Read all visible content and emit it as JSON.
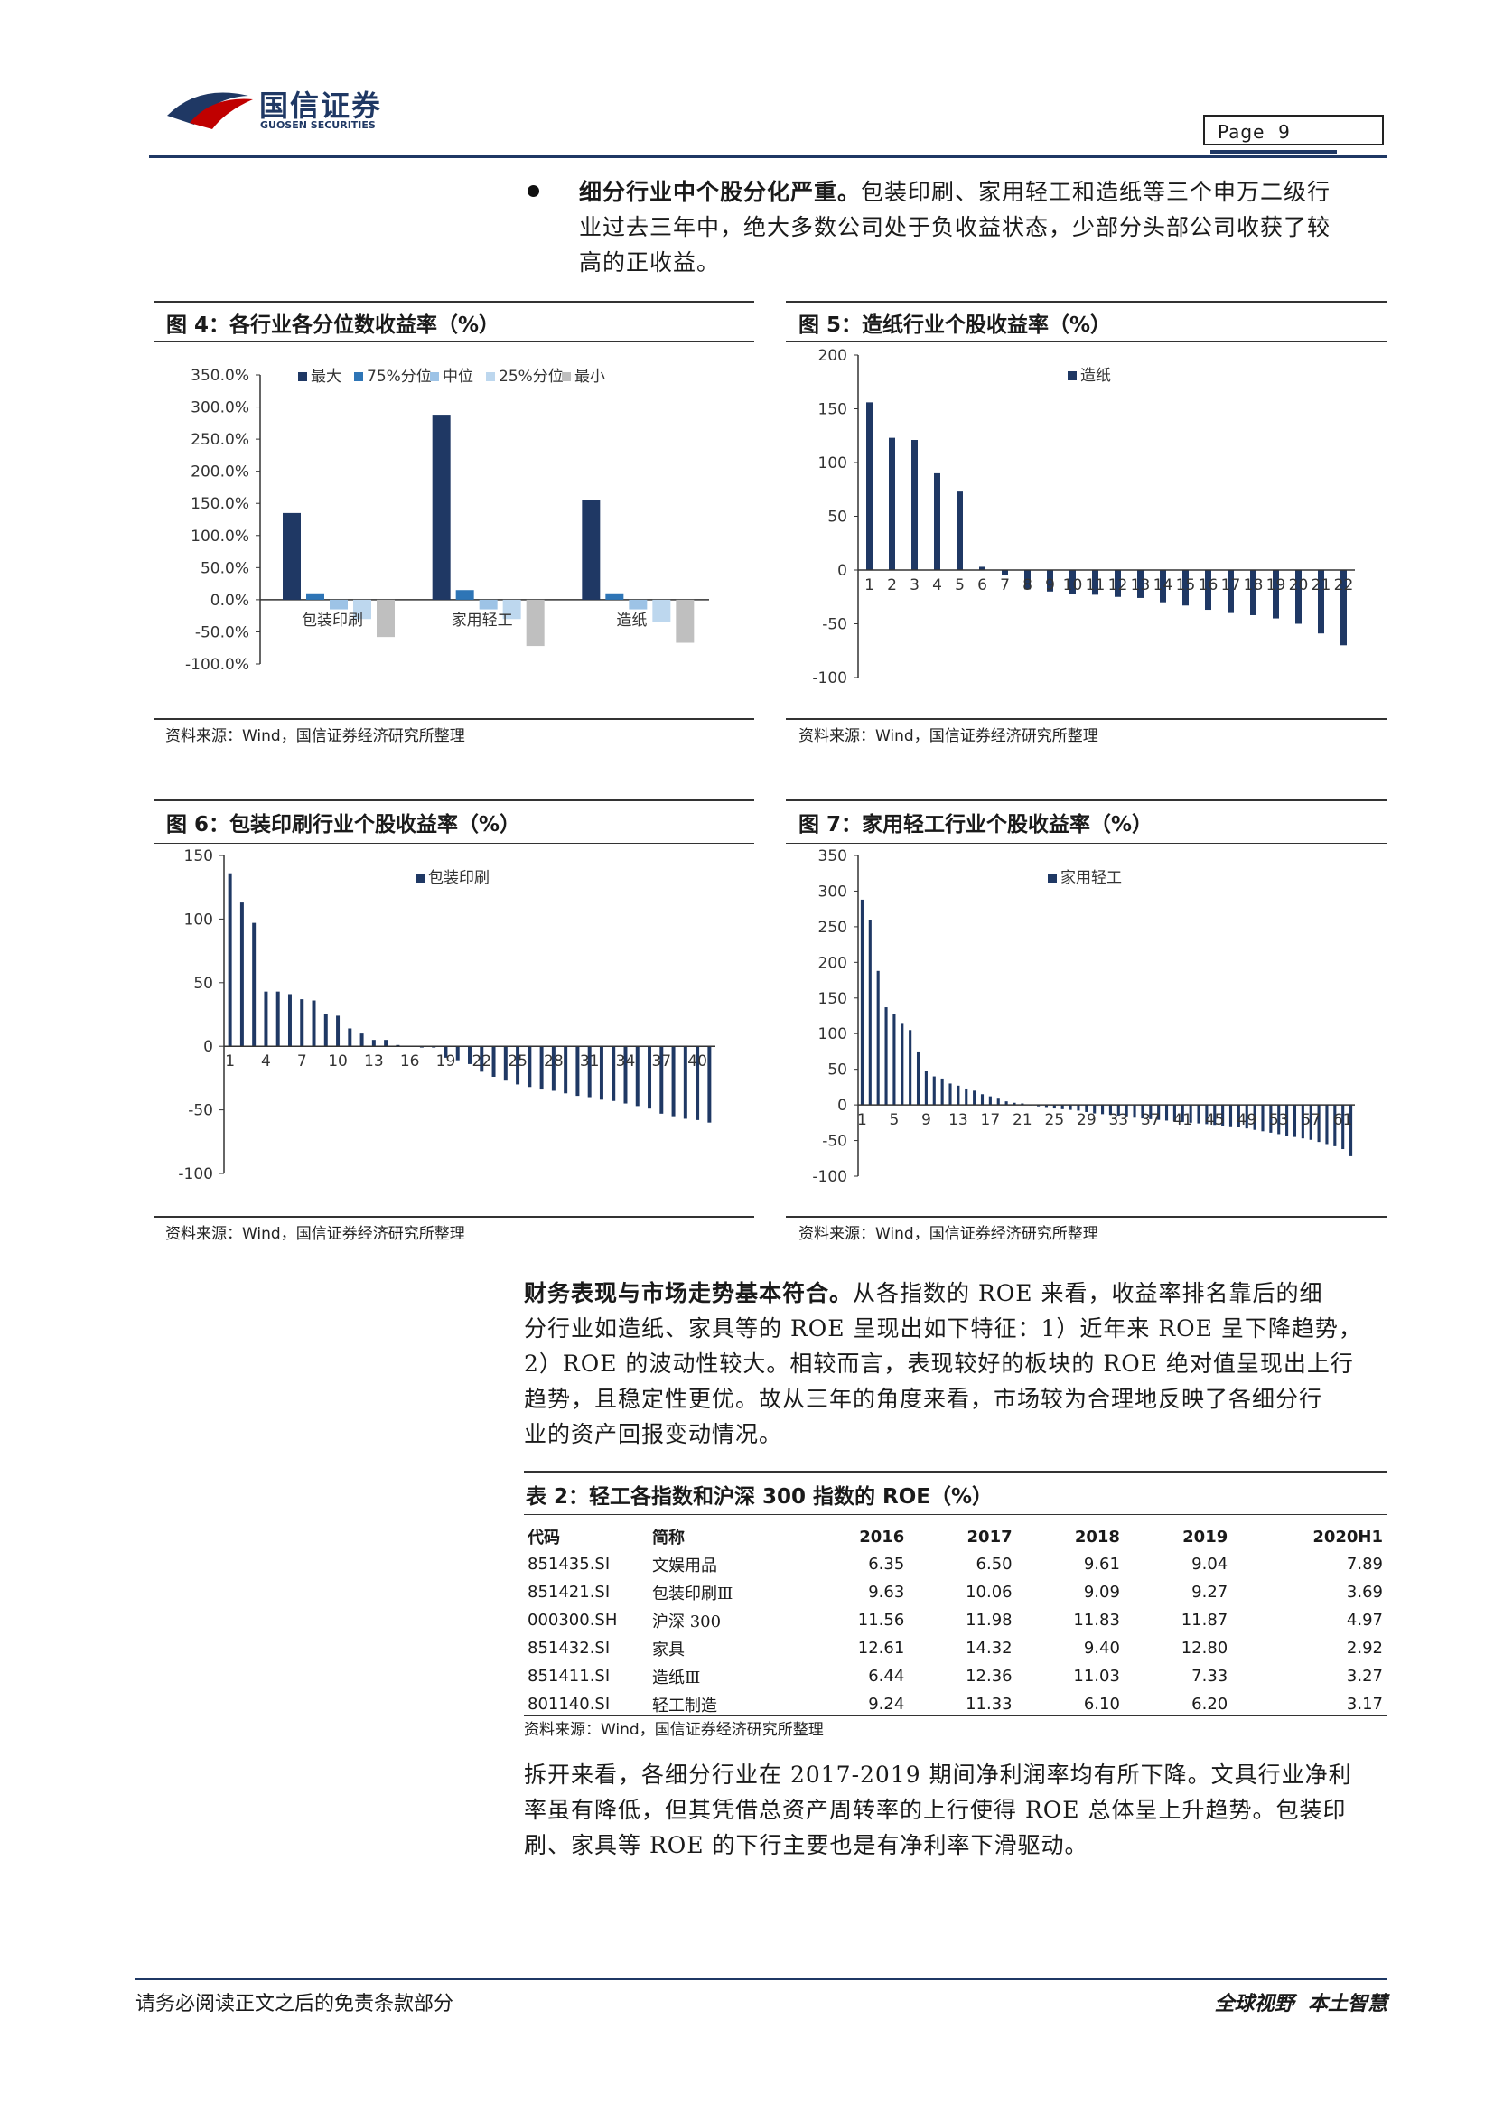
{
  "header": {
    "logo_cn": "国信证券",
    "logo_en": "GUOSEN SECURITIES",
    "page_label": "Page",
    "page_number": "9"
  },
  "bullet_para": {
    "bold": "细分行业中个股分化严重。",
    "line1": "包装印刷、家用轻工和造纸等三个申万二级行",
    "line2": "业过去三年中，绝大多数公司处于负收益状态，少部分头部公司收获了较",
    "line3": "高的正收益。"
  },
  "figures": {
    "fig4": {
      "title": "图 4：各行业各分位数收益率（%）",
      "source": "资料来源：Wind，国信证券经济研究所整理"
    },
    "fig5": {
      "title": "图 5：造纸行业个股收益率（%）",
      "source": "资料来源：Wind，国信证券经济研究所整理"
    },
    "fig6": {
      "title": "图 6：包装印刷行业个股收益率（%）",
      "source": "资料来源：Wind，国信证券经济研究所整理"
    },
    "fig7": {
      "title": "图 7：家用轻工行业个股收益率（%）",
      "source": "资料来源：Wind，国信证券经济研究所整理"
    }
  },
  "chart_data": [
    {
      "id": "fig4",
      "type": "bar",
      "categories": [
        "包装印刷",
        "家用轻工",
        "造纸"
      ],
      "series": [
        {
          "name": "最大",
          "color": "#1f3864",
          "values": [
            135,
            288,
            155
          ]
        },
        {
          "name": "75%分位",
          "color": "#2e75b6",
          "values": [
            10,
            15,
            10
          ]
        },
        {
          "name": "中位",
          "color": "#9dc3e6",
          "values": [
            -15,
            -15,
            -15
          ]
        },
        {
          "name": "25%分位",
          "color": "#bdd7ee",
          "values": [
            -30,
            -30,
            -35
          ]
        },
        {
          "name": "最小",
          "color": "#bfbfbf",
          "values": [
            -58,
            -72,
            -67
          ]
        }
      ],
      "yticks": [
        "350.0%",
        "300.0%",
        "250.0%",
        "200.0%",
        "150.0%",
        "100.0%",
        "50.0%",
        "0.0%",
        "-50.0%",
        "-100.0%"
      ],
      "ylim": [
        -100,
        350
      ]
    },
    {
      "id": "fig5",
      "type": "bar",
      "legend": "造纸",
      "x": [
        "1",
        "2",
        "3",
        "4",
        "5",
        "6",
        "7",
        "8",
        "9",
        "10",
        "11",
        "12",
        "13",
        "14",
        "15",
        "16",
        "17",
        "18",
        "19",
        "20",
        "21",
        "22"
      ],
      "values": [
        156,
        123,
        121,
        90,
        73,
        3,
        -5,
        -18,
        -20,
        -22,
        -23,
        -25,
        -26,
        -30,
        -33,
        -37,
        -40,
        -42,
        -45,
        -50,
        -59,
        -70
      ],
      "yticks": [
        "200",
        "150",
        "100",
        "50",
        "0",
        "-50",
        "-100"
      ],
      "ylim": [
        -100,
        200
      ]
    },
    {
      "id": "fig6",
      "type": "bar",
      "legend": "包装印刷",
      "x_tick_labels": [
        "1",
        "4",
        "7",
        "10",
        "13",
        "16",
        "19",
        "22",
        "25",
        "28",
        "31",
        "34",
        "37",
        "40"
      ],
      "values": [
        136,
        113,
        97,
        43,
        43,
        41,
        37,
        36,
        25,
        24,
        14,
        10,
        5,
        5,
        1,
        0,
        -1,
        -1,
        -9,
        -11,
        -14,
        -20,
        -24,
        -27,
        -30,
        -32,
        -34,
        -35,
        -37,
        -39,
        -40,
        -42,
        -43,
        -45,
        -47,
        -49,
        -53,
        -55,
        -57,
        -58,
        -60
      ],
      "yticks": [
        "150",
        "100",
        "50",
        "0",
        "-50",
        "-100"
      ],
      "ylim": [
        -100,
        150
      ]
    },
    {
      "id": "fig7",
      "type": "bar",
      "legend": "家用轻工",
      "x_tick_labels": [
        "1",
        "5",
        "9",
        "13",
        "17",
        "21",
        "25",
        "29",
        "33",
        "37",
        "41",
        "45",
        "49",
        "53",
        "57",
        "61"
      ],
      "values": [
        288,
        260,
        188,
        137,
        128,
        115,
        105,
        75,
        48,
        40,
        37,
        30,
        27,
        23,
        20,
        15,
        12,
        10,
        5,
        3,
        2,
        0,
        -2,
        -3,
        -5,
        -6,
        -7,
        -8,
        -10,
        -12,
        -13,
        -14,
        -15,
        -16,
        -18,
        -19,
        -20,
        -21,
        -22,
        -23,
        -24,
        -25,
        -26,
        -27,
        -28,
        -29,
        -30,
        -31,
        -33,
        -35,
        -37,
        -39,
        -41,
        -43,
        -45,
        -47,
        -49,
        -52,
        -55,
        -58,
        -62,
        -72
      ],
      "yticks": [
        "350",
        "300",
        "250",
        "200",
        "150",
        "100",
        "50",
        "0",
        "-50",
        "-100"
      ],
      "ylim": [
        -100,
        350
      ]
    }
  ],
  "body_para": {
    "bold": "财务表现与市场走势基本符合。",
    "line1": "从各指数的 ROE 来看，收益率排名靠后的细",
    "line2": "分行业如造纸、家具等的 ROE 呈现出如下特征：1）近年来 ROE 呈下降趋势，",
    "line3": "2）ROE 的波动性较大。相较而言，表现较好的板块的 ROE 绝对值呈现出上行",
    "line4": "趋势，且稳定性更优。故从三年的角度来看，市场较为合理地反映了各细分行",
    "line5": "业的资产回报变动情况。"
  },
  "table": {
    "title": "表 2：轻工各指数和沪深 300 指数的 ROE（%）",
    "headers": [
      "代码",
      "简称",
      "2016",
      "2017",
      "2018",
      "2019",
      "2020H1"
    ],
    "rows": [
      [
        "851435.SI",
        "文娱用品",
        "6.35",
        "6.50",
        "9.61",
        "9.04",
        "7.89"
      ],
      [
        "851421.SI",
        "包装印刷Ⅲ",
        "9.63",
        "10.06",
        "9.09",
        "9.27",
        "3.69"
      ],
      [
        "000300.SH",
        "沪深 300",
        "11.56",
        "11.98",
        "11.83",
        "11.87",
        "4.97"
      ],
      [
        "851432.SI",
        "家具",
        "12.61",
        "14.32",
        "9.40",
        "12.80",
        "2.92"
      ],
      [
        "851411.SI",
        "造纸Ⅲ",
        "6.44",
        "12.36",
        "11.03",
        "7.33",
        "3.27"
      ],
      [
        "801140.SI",
        "轻工制造",
        "9.24",
        "11.33",
        "6.10",
        "6.20",
        "3.17"
      ]
    ],
    "source": "资料来源：Wind，国信证券经济研究所整理"
  },
  "final_para": {
    "line1": "拆开来看，各细分行业在 2017-2019 期间净利润率均有所下降。文具行业净利",
    "line2": "率虽有降低，但其凭借总资产周转率的上行使得 ROE 总体呈上升趋势。包装印",
    "line3": "刷、家具等 ROE 的下行主要也是有净利率下滑驱动。"
  },
  "footer": {
    "left": "请务必阅读正文之后的免责条款部分",
    "right": "全球视野  本土智慧"
  }
}
